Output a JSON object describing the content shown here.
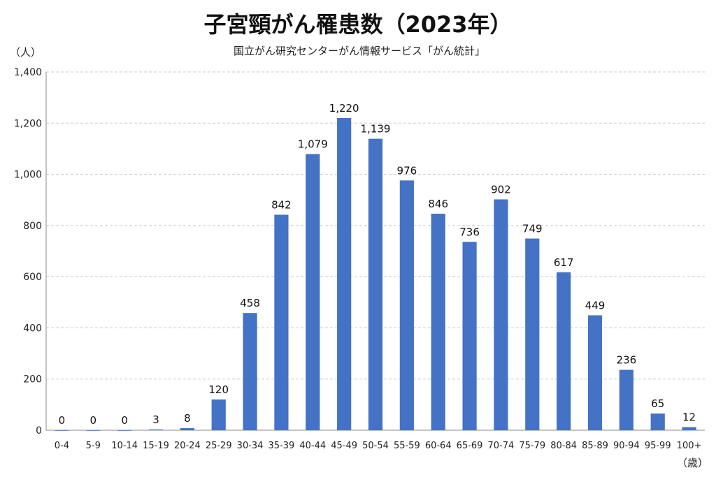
{
  "header": {
    "title": "子宮頸がん罹患数（2023年）",
    "source": "国立がん研究センターがん情報サービス「がん統計」",
    "y_unit": "（人）",
    "x_unit": "（歳）"
  },
  "chart_data": {
    "type": "bar",
    "title": "子宮頸がん罹患数（2023年）",
    "xlabel": "（歳）",
    "ylabel": "（人）",
    "ylim": [
      0,
      1400
    ],
    "yticks": [
      0,
      200,
      400,
      600,
      800,
      1000,
      1200,
      1400
    ],
    "ytick_labels": [
      "0",
      "200",
      "400",
      "600",
      "800",
      "1,000",
      "1,200",
      "1,400"
    ],
    "grid": true,
    "legend": "none",
    "bar_color": "#4472C4",
    "categories": [
      "0-4",
      "5-9",
      "10-14",
      "15-19",
      "20-24",
      "25-29",
      "30-34",
      "35-39",
      "40-44",
      "45-49",
      "50-54",
      "55-59",
      "60-64",
      "65-69",
      "70-74",
      "75-79",
      "80-84",
      "85-89",
      "90-94",
      "95-99",
      "100+"
    ],
    "values": [
      0,
      0,
      0,
      3,
      8,
      120,
      458,
      842,
      1079,
      1220,
      1139,
      976,
      846,
      736,
      902,
      749,
      617,
      449,
      236,
      65,
      12
    ],
    "value_labels": [
      "0",
      "0",
      "0",
      "3",
      "8",
      "120",
      "458",
      "842",
      "1,079",
      "1,220",
      "1,139",
      "976",
      "846",
      "736",
      "902",
      "749",
      "617",
      "449",
      "236",
      "65",
      "12"
    ]
  }
}
